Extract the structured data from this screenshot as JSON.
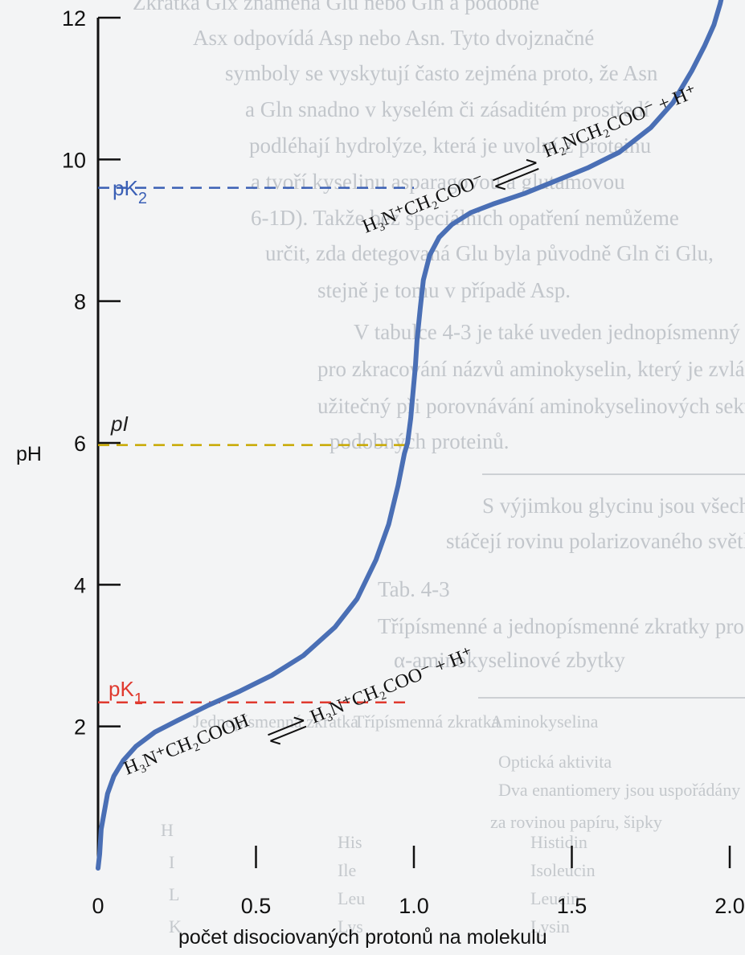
{
  "background_text": {
    "lines": [
      "Zkratka Glx znamená Glu nebo Gln a podobně",
      "Asx odpovídá Asp nebo Asn. Tyto dvojznačné",
      "symboly se vyskytují často zejména proto, že Asn",
      "a Gln snadno v kyselém či zásaditém prostředí",
      "podléhají hydrolýze, která je uvolní z proteinu",
      "a tvoří kyselinu asparagovou a glutamovou",
      "6-1D). Takže bez speciálních opatření nemůžeme",
      "určit, zda detegovaná Glu byla původně Gln či Glu,",
      "stejně je tomu v případě Asp.",
      "V tabulce 4-3 je také uveden jednopísmenný kód",
      "pro zkracování názvů aminokyselin, který je zvlášť",
      "užitečný při porovnávání aminokyselinových sekvencí",
      "podobných proteinů.",
      "S výjimkou glycinu jsou všechny aminokyseliny izolované",
      "stáčejí rovinu polarizovaného světla (viz dále).",
      "Tab. 4-3",
      "Třípísmenné a jednopísmenné zkratky pro základní",
      "α-aminokyselinové zbytky",
      "Aminokyselina",
      "Třípísmenná zkratka",
      "Jednopísmenná zkratka",
      "Optická aktivita",
      "Dva enantiomery jsou uspořádány okolo atomu",
      "za rovinou papíru, šipky",
      "Histidin",
      "His",
      "H",
      "Isoleucin",
      "Ile",
      "I",
      "Leucin",
      "Leu",
      "L",
      "Lysin",
      "Lys",
      "K"
    ]
  },
  "chart_data": {
    "type": "line",
    "title": "",
    "xlabel": "počet disociovaných protonů na molekulu",
    "ylabel": "pH",
    "xlim": [
      0,
      2.0
    ],
    "ylim": [
      0,
      12
    ],
    "x_ticks": [
      "0",
      "0.5",
      "1.0",
      "1.5",
      "2.0"
    ],
    "y_ticks": [
      "2",
      "4",
      "6",
      "8",
      "10",
      "12"
    ],
    "series": [
      {
        "color": "#4a6fb5",
        "x": [
          0,
          0.005,
          0.01,
          0.03,
          0.05,
          0.08,
          0.12,
          0.18,
          0.25,
          0.35,
          0.45,
          0.55,
          0.65,
          0.75,
          0.82,
          0.88,
          0.92,
          0.95,
          0.97,
          0.98,
          0.99,
          0.995,
          1.0,
          1.005,
          1.01,
          1.02,
          1.03,
          1.05,
          1.08,
          1.12,
          1.18,
          1.25,
          1.35,
          1.45,
          1.55,
          1.65,
          1.75,
          1.82,
          1.88,
          1.92,
          1.95,
          1.97,
          1.985,
          1.995
        ],
        "y": [
          0.0,
          0.2,
          0.55,
          1.05,
          1.3,
          1.52,
          1.72,
          1.92,
          2.08,
          2.3,
          2.5,
          2.72,
          3.0,
          3.4,
          3.8,
          4.35,
          4.85,
          5.4,
          5.85,
          6.0,
          6.35,
          6.6,
          6.85,
          7.1,
          7.45,
          7.9,
          8.3,
          8.65,
          8.9,
          9.08,
          9.25,
          9.37,
          9.52,
          9.7,
          9.88,
          10.1,
          10.45,
          10.8,
          11.25,
          11.6,
          11.9,
          12.2,
          12.5,
          12.75
        ]
      }
    ],
    "pK1": {
      "label": "pK",
      "sub": "1",
      "value": 2.34,
      "color": "#e03a2f"
    },
    "pI": {
      "label": "pI",
      "value": 5.97,
      "color": "#c8a800"
    },
    "pK2": {
      "label": "pK",
      "sub": "2",
      "value": 9.6,
      "color": "#3a5fb5"
    },
    "species": [
      {
        "text": "H₃N⁺CH₂COOH"
      },
      {
        "text": "H₃N⁺CH₂COO⁻ + H⁺"
      },
      {
        "text": "H₃N⁺CH₂COO⁻"
      },
      {
        "text": "H₂NCH₂COO⁻ + H⁺"
      }
    ]
  }
}
